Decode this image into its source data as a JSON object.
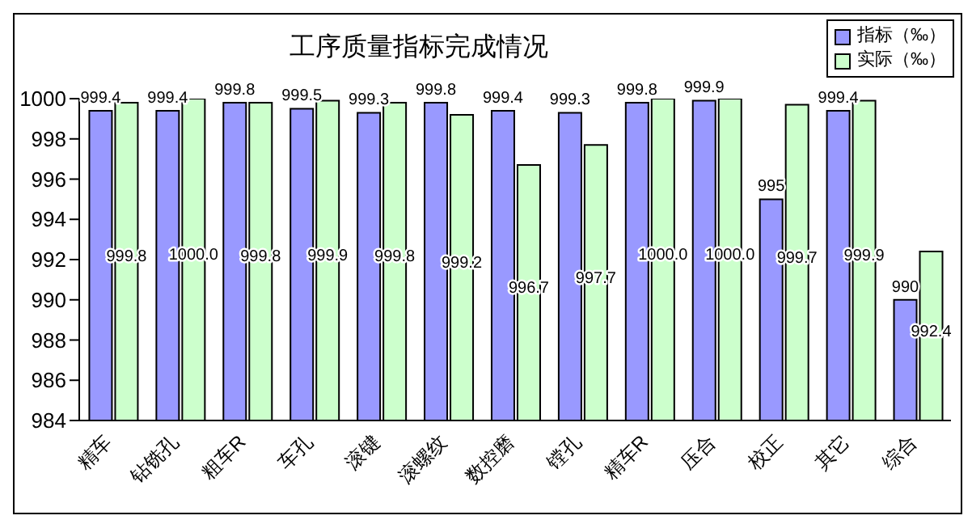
{
  "chart_data": {
    "type": "bar",
    "title": "工序质量指标完成情况",
    "categories": [
      "精车",
      "钻铣孔",
      "粗车R",
      "车孔",
      "滚键",
      "滚螺纹",
      "数控磨",
      "镗孔",
      "精车R",
      "压合",
      "校正",
      "其它",
      "综合"
    ],
    "series": [
      {
        "name": "指标（‰）",
        "color": "#9999ff",
        "values": [
          999.4,
          999.4,
          999.8,
          999.5,
          999.3,
          999.8,
          999.4,
          999.3,
          999.8,
          999.9,
          995,
          999.4,
          990
        ],
        "value_labels": [
          "999.4",
          "999.4",
          "999.8",
          "999.5",
          "999.3",
          "999.8",
          "999.4",
          "999.3",
          "999.8",
          "999.9",
          "995",
          "999.4",
          "990"
        ]
      },
      {
        "name": "实际（‰）",
        "color": "#ccffcc",
        "values": [
          999.8,
          1000.0,
          999.8,
          999.9,
          999.8,
          999.2,
          996.7,
          997.7,
          1000.0,
          1000.0,
          999.7,
          999.9,
          992.4
        ],
        "value_labels": [
          "999.8",
          "1000.0",
          "999.8",
          "999.9",
          "999.8",
          "999.2",
          "996.7",
          "997.7",
          "1000.0",
          "1000.0",
          "999.7",
          "999.9",
          "992.4"
        ]
      }
    ],
    "ylim": [
      984,
      1000
    ],
    "yticks": [
      984,
      986,
      988,
      990,
      992,
      994,
      996,
      998,
      1000
    ],
    "grid": false,
    "legend": "top right"
  }
}
